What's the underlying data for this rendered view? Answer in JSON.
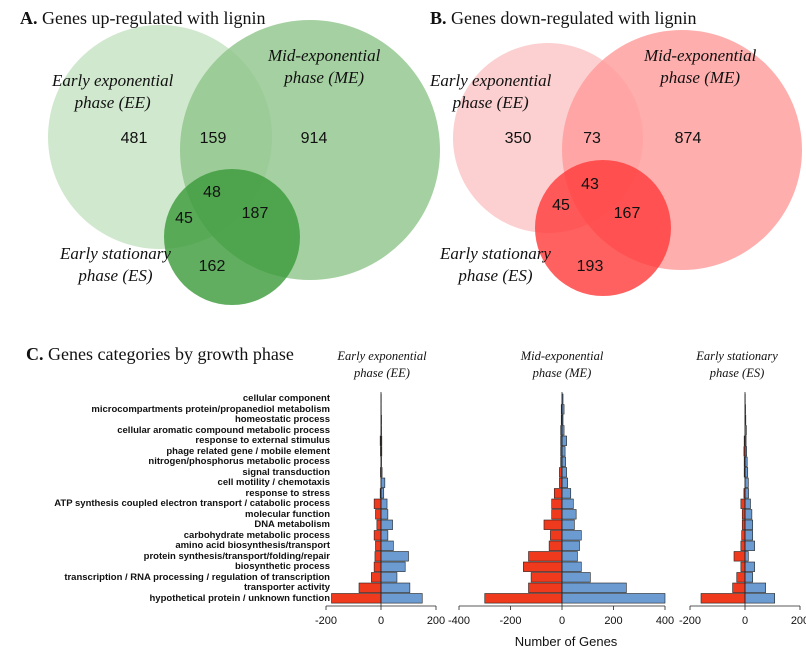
{
  "panelA": {
    "letter": "A.",
    "title": "Genes up-regulated with lignin",
    "labels": {
      "ee": [
        "Early exponential",
        "phase (EE)"
      ],
      "me": [
        "Mid-exponential",
        "phase (ME)"
      ],
      "es": [
        "Early stationary",
        "phase (ES)"
      ]
    },
    "counts": {
      "ee_only": "481",
      "ee_me": "159",
      "me_only": "914",
      "all": "48",
      "ee_es": "45",
      "me_es": "187",
      "es_only": "162"
    },
    "colors": {
      "ee": "#c8e4c4",
      "me": "#8fc48a",
      "es": "#3a9a3a"
    }
  },
  "panelB": {
    "letter": "B.",
    "title": "Genes down-regulated with lignin",
    "labels": {
      "ee": [
        "Early exponential",
        "phase (EE)"
      ],
      "me": [
        "Mid-exponential",
        "phase (ME)"
      ],
      "es": [
        "Early stationary",
        "phase (ES)"
      ]
    },
    "counts": {
      "ee_only": "350",
      "ee_me": "73",
      "me_only": "874",
      "all": "43",
      "ee_es": "45",
      "me_es": "167",
      "es_only": "193"
    },
    "colors": {
      "ee": "#fcc8c8",
      "me": "#ff9a9a",
      "es": "#ff3a3a"
    }
  },
  "chart_data": {
    "type": "bar",
    "orientation": "horizontal",
    "title": "Genes categories by growth phase",
    "title_letter": "C.",
    "xlabel": "Number of Genes",
    "colors": {
      "down": "#f03a1e",
      "up": "#6b9bd1"
    },
    "categories": [
      "cellular component",
      "microcompartments protein/propanediol metabolism",
      "homeostatic process",
      "cellular aromatic compound metabolic process",
      "response to external stimulus",
      "phage related gene / mobile element",
      "nitrogen/phosphorus metabolic process",
      "signal transduction",
      "cell motility / chemotaxis",
      "response to stress",
      "ATP synthesis coupled electron transport / catabolic process",
      "molecular function",
      "DNA metabolism",
      "carbohydrate metabolic process",
      "amino acid biosynthesis/transport",
      "protein synthesis/transport/folding/repair",
      "biosynthetic process",
      "transcription / RNA processing / regulation of transcription",
      "transporter activity",
      "hypothetical protein / unknown function"
    ],
    "panels": [
      {
        "name_lines": [
          "Early exponential",
          "phase (EE)"
        ],
        "xlim": [
          -200,
          200
        ],
        "ticks": [
          -200,
          0,
          200
        ],
        "down": [
          0,
          0,
          0,
          0,
          -3,
          -2,
          0,
          -2,
          0,
          -3,
          -25,
          -20,
          -15,
          -25,
          -20,
          -22,
          -25,
          -35,
          -80,
          -180
        ],
        "up": [
          1,
          1,
          2,
          2,
          3,
          3,
          2,
          4,
          14,
          10,
          22,
          25,
          42,
          25,
          45,
          100,
          88,
          58,
          105,
          150
        ]
      },
      {
        "name_lines": [
          "Mid-exponential",
          "phase (ME)"
        ],
        "xlim": [
          -400,
          400
        ],
        "ticks": [
          -400,
          -200,
          0,
          200,
          400
        ],
        "down": [
          0,
          -3,
          -3,
          -5,
          -5,
          -5,
          -5,
          -10,
          -10,
          -30,
          -40,
          -40,
          -70,
          -45,
          -50,
          -130,
          -150,
          -120,
          -130,
          -300
        ],
        "up": [
          4,
          8,
          4,
          8,
          18,
          12,
          14,
          18,
          22,
          34,
          44,
          55,
          48,
          75,
          68,
          60,
          75,
          110,
          250,
          400
        ]
      },
      {
        "name_lines": [
          "Early stationary",
          "phase (ES)"
        ],
        "xlim": [
          -200,
          200
        ],
        "ticks": [
          -200,
          0,
          200
        ],
        "down": [
          0,
          0,
          0,
          0,
          -3,
          -4,
          -3,
          -3,
          0,
          -4,
          -15,
          -10,
          -10,
          -12,
          -15,
          -40,
          -15,
          -30,
          -45,
          -160
        ],
        "up": [
          1,
          2,
          3,
          5,
          4,
          6,
          8,
          10,
          12,
          13,
          20,
          25,
          28,
          28,
          35,
          12,
          35,
          28,
          75,
          108
        ]
      }
    ]
  }
}
